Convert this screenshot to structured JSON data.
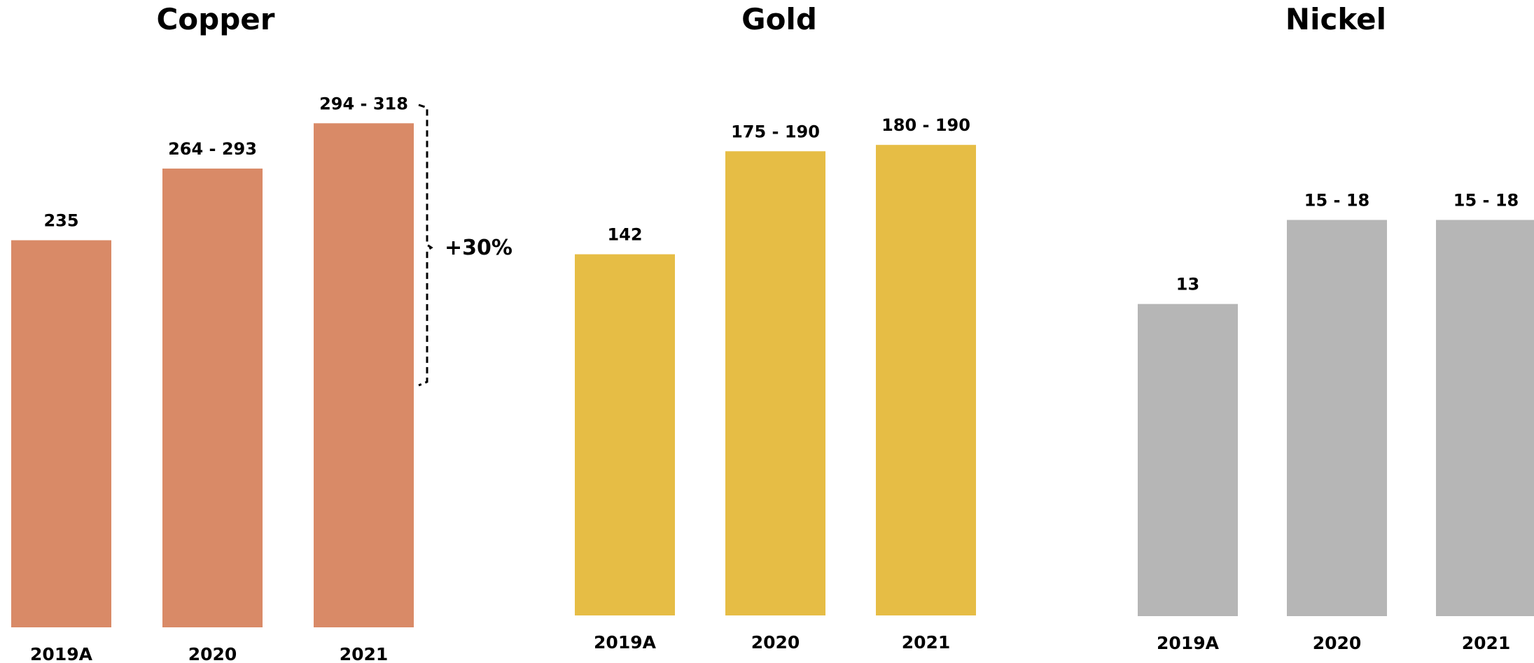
{
  "chart_data": [
    {
      "type": "bar",
      "title": "Copper",
      "categories": [
        "2019A",
        "2020",
        "2021"
      ],
      "values": [
        235,
        278.5,
        306
      ],
      "value_labels": [
        "235",
        "264 - 293",
        "294 - 318"
      ],
      "ylim": [
        0,
        318
      ],
      "color": "#D98A67",
      "annotation": {
        "text": "+30%",
        "from_category": "2019A",
        "to_category": "2021"
      }
    },
    {
      "type": "bar",
      "title": "Gold",
      "categories": [
        "2019A",
        "2020",
        "2021"
      ],
      "values": [
        142,
        182.5,
        185
      ],
      "value_labels": [
        "142",
        "175 - 190",
        "180 - 190"
      ],
      "ylim": [
        0,
        190
      ],
      "color": "#E6BD45"
    },
    {
      "type": "bar",
      "title": "Nickel",
      "categories": [
        "2019A",
        "2020",
        "2021"
      ],
      "values": [
        13,
        16.5,
        16.5
      ],
      "value_labels": [
        "13",
        "15 - 18",
        "15 - 18"
      ],
      "ylim": [
        0,
        18
      ],
      "color": "#B6B6B6"
    }
  ]
}
